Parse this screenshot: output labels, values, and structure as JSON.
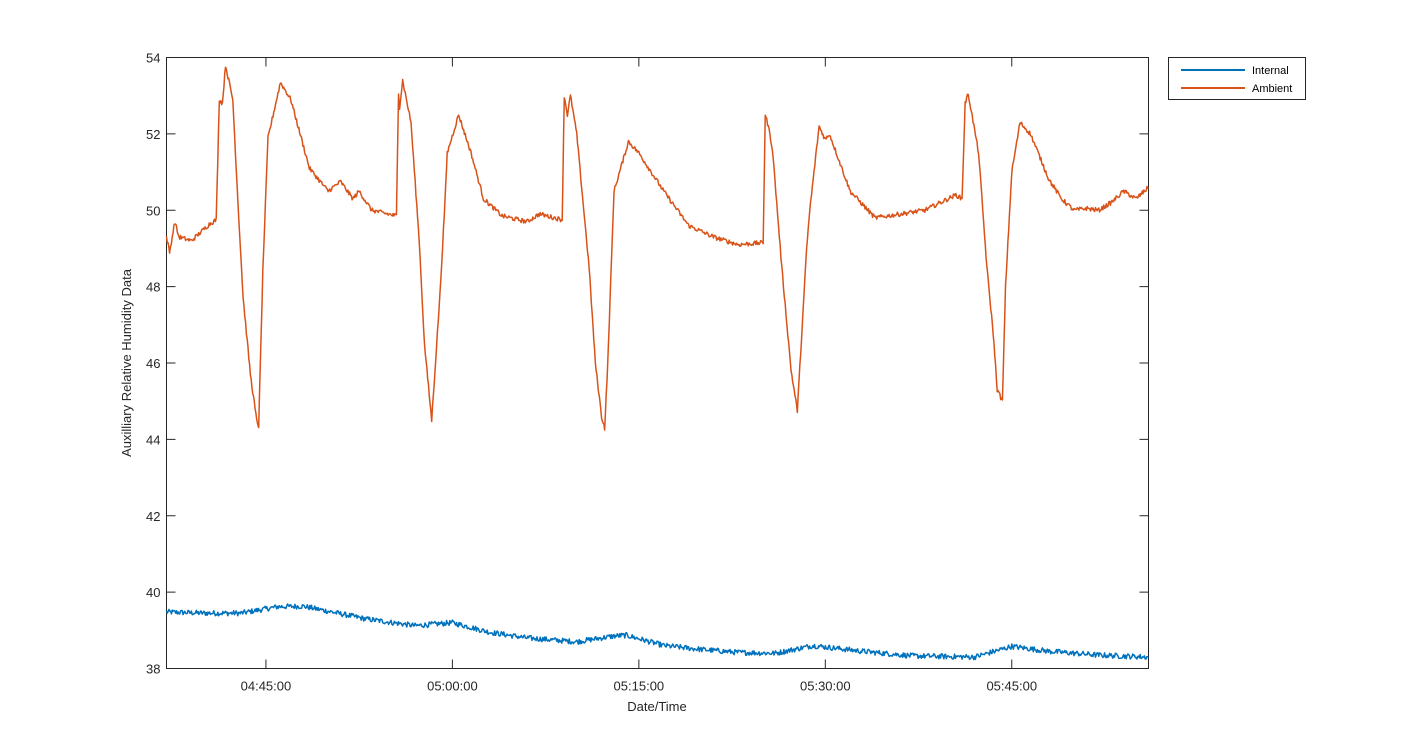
{
  "chart_data": {
    "type": "line",
    "title": "",
    "xlabel": "Date/Time",
    "ylabel": "Auxilliary Relative Humidity Data",
    "x_unit": "time (HH:MM:SS)",
    "xlim": [
      "04:37:00",
      "05:56:00"
    ],
    "ylim": [
      38,
      54
    ],
    "x_ticks": [
      "04:45:00",
      "05:00:00",
      "05:15:00",
      "05:30:00",
      "05:45:00"
    ],
    "y_ticks": [
      38,
      40,
      42,
      44,
      46,
      48,
      50,
      52,
      54
    ],
    "grid": false,
    "legend_position": "top-right, outside plot area",
    "series": [
      {
        "name": "Internal",
        "color": "#0072BD",
        "noise_amplitude": 0.07,
        "points": [
          [
            "04:37:00",
            39.48
          ],
          [
            "04:40:00",
            39.45
          ],
          [
            "04:43:00",
            39.45
          ],
          [
            "04:46:00",
            39.62
          ],
          [
            "04:48:00",
            39.63
          ],
          [
            "04:50:00",
            39.5
          ],
          [
            "04:53:00",
            39.3
          ],
          [
            "04:57:00",
            39.12
          ],
          [
            "05:00:00",
            39.2
          ],
          [
            "05:03:00",
            38.95
          ],
          [
            "05:06:00",
            38.8
          ],
          [
            "05:10:00",
            38.7
          ],
          [
            "05:13:00",
            38.85
          ],
          [
            "05:14:00",
            38.87
          ],
          [
            "05:17:00",
            38.6
          ],
          [
            "05:20:00",
            38.5
          ],
          [
            "05:23:00",
            38.42
          ],
          [
            "05:26:00",
            38.4
          ],
          [
            "05:29:00",
            38.6
          ],
          [
            "05:33:00",
            38.45
          ],
          [
            "05:37:00",
            38.33
          ],
          [
            "05:42:00",
            38.3
          ],
          [
            "05:45:00",
            38.58
          ],
          [
            "05:48:00",
            38.45
          ],
          [
            "05:52:00",
            38.35
          ],
          [
            "05:56:00",
            38.3
          ]
        ]
      },
      {
        "name": "Ambient",
        "color": "#D95319",
        "noise_amplitude": 0.06,
        "points": [
          [
            "04:37:00",
            49.3
          ],
          [
            "04:37:15",
            48.9
          ],
          [
            "04:37:40",
            49.7
          ],
          [
            "04:38:00",
            49.3
          ],
          [
            "04:39:00",
            49.2
          ],
          [
            "04:40:30",
            49.65
          ],
          [
            "04:41:00",
            49.75
          ],
          [
            "04:41:15",
            52.9
          ],
          [
            "04:41:30",
            52.8
          ],
          [
            "04:41:45",
            53.8
          ],
          [
            "04:42:20",
            52.9
          ],
          [
            "04:42:45",
            50.2
          ],
          [
            "04:43:10",
            47.7
          ],
          [
            "04:43:45",
            45.7
          ],
          [
            "04:44:15",
            44.5
          ],
          [
            "04:44:25",
            44.35
          ],
          [
            "04:44:45",
            48.4
          ],
          [
            "04:45:10",
            51.9
          ],
          [
            "04:46:10",
            53.35
          ],
          [
            "04:47:00",
            52.9
          ],
          [
            "04:48:30",
            51.1
          ],
          [
            "04:50:00",
            50.5
          ],
          [
            "04:51:00",
            50.75
          ],
          [
            "04:52:00",
            50.3
          ],
          [
            "04:52:30",
            50.5
          ],
          [
            "04:53:30",
            50.0
          ],
          [
            "04:55:30",
            49.85
          ],
          [
            "04:55:40",
            53.1
          ],
          [
            "04:55:45",
            52.7
          ],
          [
            "04:56:00",
            53.4
          ],
          [
            "04:56:40",
            52.3
          ],
          [
            "04:57:20",
            49.2
          ],
          [
            "04:57:45",
            46.5
          ],
          [
            "04:58:20",
            44.5
          ],
          [
            "04:59:00",
            47.8
          ],
          [
            "04:59:25",
            50.3
          ],
          [
            "04:59:35",
            51.5
          ],
          [
            "05:00:30",
            52.5
          ],
          [
            "05:01:30",
            51.5
          ],
          [
            "05:02:30",
            50.3
          ],
          [
            "05:04:00",
            49.85
          ],
          [
            "05:06:00",
            49.7
          ],
          [
            "05:07:00",
            49.9
          ],
          [
            "05:08:50",
            49.75
          ],
          [
            "05:09:00",
            53.0
          ],
          [
            "05:09:15",
            52.5
          ],
          [
            "05:09:30",
            53.0
          ],
          [
            "05:10:00",
            52.0
          ],
          [
            "05:11:00",
            48.5
          ],
          [
            "05:11:30",
            46.0
          ],
          [
            "05:12:00",
            44.6
          ],
          [
            "05:12:15",
            44.3
          ],
          [
            "05:12:30",
            46.0
          ],
          [
            "05:13:00",
            50.5
          ],
          [
            "05:14:10",
            51.8
          ],
          [
            "05:15:00",
            51.5
          ],
          [
            "05:17:00",
            50.5
          ],
          [
            "05:19:00",
            49.6
          ],
          [
            "05:21:00",
            49.3
          ],
          [
            "05:23:00",
            49.1
          ],
          [
            "05:25:00",
            49.15
          ],
          [
            "05:25:10",
            52.5
          ],
          [
            "05:25:25",
            52.2
          ],
          [
            "05:25:45",
            51.6
          ],
          [
            "05:26:30",
            48.5
          ],
          [
            "05:27:15",
            45.8
          ],
          [
            "05:27:45",
            44.75
          ],
          [
            "05:28:30",
            49.0
          ],
          [
            "05:28:45",
            50.0
          ],
          [
            "05:29:30",
            52.2
          ],
          [
            "05:30:00",
            51.85
          ],
          [
            "05:30:20",
            52.0
          ],
          [
            "05:32:00",
            50.5
          ],
          [
            "05:34:00",
            49.8
          ],
          [
            "05:36:00",
            49.9
          ],
          [
            "05:38:00",
            50.0
          ],
          [
            "05:40:30",
            50.4
          ],
          [
            "05:41:00",
            50.3
          ],
          [
            "05:41:15",
            52.8
          ],
          [
            "05:41:30",
            53.05
          ],
          [
            "05:42:20",
            51.5
          ],
          [
            "05:43:00",
            48.5
          ],
          [
            "05:43:30",
            46.8
          ],
          [
            "05:43:50",
            45.3
          ],
          [
            "05:44:15",
            45.0
          ],
          [
            "05:44:30",
            48.0
          ],
          [
            "05:45:00",
            51.0
          ],
          [
            "05:45:40",
            52.3
          ],
          [
            "05:46:30",
            52.0
          ],
          [
            "05:48:00",
            50.8
          ],
          [
            "05:49:00",
            50.3
          ],
          [
            "05:50:00",
            50.0
          ],
          [
            "05:51:00",
            50.05
          ],
          [
            "05:52:00",
            50.0
          ],
          [
            "05:53:00",
            50.2
          ],
          [
            "05:54:00",
            50.5
          ],
          [
            "05:55:00",
            50.3
          ],
          [
            "05:55:30",
            50.45
          ],
          [
            "05:56:00",
            50.6
          ]
        ]
      }
    ]
  }
}
